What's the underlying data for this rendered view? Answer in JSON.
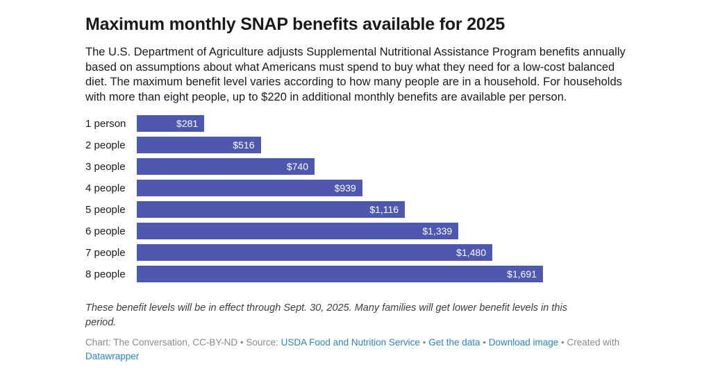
{
  "chart_data": {
    "type": "bar",
    "title": "Maximum monthly SNAP benefits available for 2025",
    "categories": [
      "1 person",
      "2 people",
      "3 people",
      "4 people",
      "5 people",
      "6 people",
      "7 people",
      "8 people"
    ],
    "values": [
      281,
      516,
      740,
      939,
      1116,
      1339,
      1480,
      1691
    ],
    "value_labels": [
      "$281",
      "$516",
      "$740",
      "$939",
      "$1,116",
      "$1,339",
      "$1,480",
      "$1,691"
    ],
    "xlabel": "",
    "ylabel": "",
    "xlim": [
      0,
      1691
    ],
    "orientation": "horizontal",
    "grid": false,
    "legend": false,
    "value_label_position": "inside-end"
  },
  "description": "The U.S. Department of Agriculture adjusts Supplemental Nutritional Assistance Program benefits annually based on assumptions about what Americans must spend to buy what they need for a low-cost balanced diet. The maximum benefit level varies according to how many people are in a household. For households with more than eight people, up to $220 in additional monthly benefits are available per person.",
  "footnote": "These benefit levels will be in effect through Sept. 30, 2025. Many families will get lower benefit levels in this period.",
  "attribution": {
    "prefix": "Chart: The Conversation, CC-BY-ND • Source: ",
    "source_link": "USDA Food and Nutrition Service",
    "sep1": " • ",
    "get_data_link": "Get the data",
    "sep2": " • ",
    "download_link": "Download image",
    "sep3": " • Created with ",
    "datawrapper_link": "Datawrapper"
  },
  "colors": {
    "bar": "#4e58ae",
    "link": "#2785bd",
    "title_text": "#1a1a1a",
    "footnote_text": "#3d3d3d",
    "credit_text": "#8a8a8a"
  }
}
